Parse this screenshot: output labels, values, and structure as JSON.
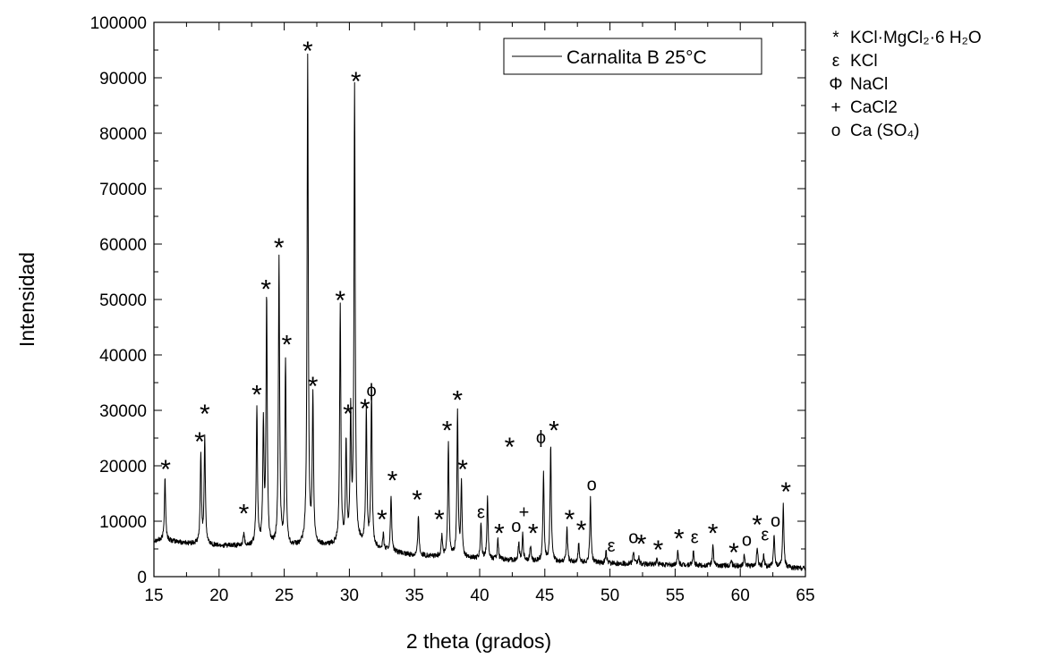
{
  "chart_data": {
    "type": "line",
    "xlabel": "2 theta (grados)",
    "ylabel": "Intensidad",
    "xlim": [
      15,
      65
    ],
    "ylim": [
      0,
      100000
    ],
    "x_ticks": [
      15,
      20,
      25,
      30,
      35,
      40,
      45,
      50,
      55,
      60,
      65
    ],
    "x_tick_labels": [
      "15",
      "20",
      "25",
      "30",
      "35",
      "40",
      "45",
      "50",
      "55",
      "60",
      "65"
    ],
    "y_ticks": [
      0,
      10000,
      20000,
      30000,
      40000,
      50000,
      60000,
      70000,
      80000,
      90000,
      100000
    ],
    "y_tick_labels": [
      "0",
      "10000",
      "20000",
      "30000",
      "40000",
      "50000",
      "60000",
      "70000",
      "80000",
      "90000",
      "100000"
    ],
    "grid": false,
    "legend": {
      "position": "top-right",
      "entries": [
        "Carnalita B 25°C"
      ]
    },
    "series": [
      {
        "name": "Carnalita B 25°C",
        "color": "#000000",
        "baseline": [
          [
            15,
            6500
          ],
          [
            16,
            6500
          ],
          [
            17,
            6200
          ],
          [
            18,
            5900
          ],
          [
            20,
            5600
          ],
          [
            22,
            5500
          ],
          [
            25,
            5300
          ],
          [
            28,
            5600
          ],
          [
            31,
            5800
          ],
          [
            33,
            4500
          ],
          [
            35,
            3800
          ],
          [
            38,
            3500
          ],
          [
            40,
            3200
          ],
          [
            45,
            2700
          ],
          [
            50,
            2400
          ],
          [
            55,
            2100
          ],
          [
            60,
            1900
          ],
          [
            65,
            1500
          ]
        ],
        "peaks": [
          [
            15.85,
            18000
          ],
          [
            18.6,
            22000
          ],
          [
            18.9,
            25000
          ],
          [
            21.9,
            8000
          ],
          [
            22.9,
            30500
          ],
          [
            23.4,
            27000
          ],
          [
            23.65,
            50000
          ],
          [
            24.6,
            57000
          ],
          [
            25.1,
            39000
          ],
          [
            26.8,
            93500
          ],
          [
            27.2,
            32000
          ],
          [
            29.3,
            48500
          ],
          [
            29.75,
            24000
          ],
          [
            30.1,
            29000
          ],
          [
            30.4,
            87500
          ],
          [
            31.3,
            30000
          ],
          [
            31.7,
            33000
          ],
          [
            32.6,
            7500
          ],
          [
            33.2,
            14500
          ],
          [
            35.3,
            11000
          ],
          [
            37.1,
            7500
          ],
          [
            37.6,
            24000
          ],
          [
            38.3,
            29500
          ],
          [
            38.6,
            16500
          ],
          [
            40.1,
            9500
          ],
          [
            40.6,
            14000
          ],
          [
            41.4,
            6500
          ],
          [
            43.0,
            6000
          ],
          [
            43.3,
            7500
          ],
          [
            43.9,
            5500
          ],
          [
            44.9,
            18500
          ],
          [
            45.45,
            23500
          ],
          [
            46.7,
            8500
          ],
          [
            47.6,
            6000
          ],
          [
            48.5,
            14000
          ],
          [
            49.7,
            4500
          ],
          [
            51.8,
            4500
          ],
          [
            52.2,
            3500
          ],
          [
            53.6,
            3200
          ],
          [
            55.2,
            4500
          ],
          [
            56.4,
            4500
          ],
          [
            57.9,
            5500
          ],
          [
            59.3,
            3000
          ],
          [
            60.3,
            4000
          ],
          [
            61.3,
            5500
          ],
          [
            61.8,
            4000
          ],
          [
            62.6,
            7500
          ],
          [
            63.3,
            13000
          ]
        ]
      }
    ],
    "annotations": [
      {
        "text": "*",
        "x": 15.9,
        "y": 20000
      },
      {
        "text": "*",
        "x": 18.5,
        "y": 25000
      },
      {
        "text": "*",
        "x": 18.9,
        "y": 30000
      },
      {
        "text": "*",
        "x": 21.9,
        "y": 12000
      },
      {
        "text": "*",
        "x": 22.9,
        "y": 33500
      },
      {
        "text": "*",
        "x": 23.6,
        "y": 52500
      },
      {
        "text": "*",
        "x": 24.6,
        "y": 60000
      },
      {
        "text": "*",
        "x": 25.2,
        "y": 42500
      },
      {
        "text": "*",
        "x": 26.8,
        "y": 95500
      },
      {
        "text": "*",
        "x": 27.2,
        "y": 35000
      },
      {
        "text": "*",
        "x": 29.3,
        "y": 50500
      },
      {
        "text": "*",
        "x": 29.9,
        "y": 30000
      },
      {
        "text": "*",
        "x": 30.5,
        "y": 90000
      },
      {
        "text": "*",
        "x": 31.2,
        "y": 31000
      },
      {
        "text": "ϕ",
        "x": 31.7,
        "y": 33500
      },
      {
        "text": "*",
        "x": 32.5,
        "y": 11000
      },
      {
        "text": "*",
        "x": 33.3,
        "y": 18000
      },
      {
        "text": "*",
        "x": 35.2,
        "y": 14500
      },
      {
        "text": "*",
        "x": 36.9,
        "y": 11000
      },
      {
        "text": "*",
        "x": 37.5,
        "y": 27000
      },
      {
        "text": "*",
        "x": 38.3,
        "y": 32500
      },
      {
        "text": "*",
        "x": 38.7,
        "y": 20000
      },
      {
        "text": "ε",
        "x": 40.1,
        "y": 11500
      },
      {
        "text": "*",
        "x": 41.5,
        "y": 8500
      },
      {
        "text": "o",
        "x": 42.8,
        "y": 9000
      },
      {
        "text": "+",
        "x": 43.4,
        "y": 11500
      },
      {
        "text": "*",
        "x": 44.1,
        "y": 8500
      },
      {
        "text": "*",
        "x": 42.3,
        "y": 24000
      },
      {
        "text": "ϕ",
        "x": 44.7,
        "y": 25000
      },
      {
        "text": "*",
        "x": 45.7,
        "y": 27000
      },
      {
        "text": "*",
        "x": 46.9,
        "y": 11000
      },
      {
        "text": "*",
        "x": 47.8,
        "y": 9000
      },
      {
        "text": "o",
        "x": 48.6,
        "y": 16500
      },
      {
        "text": "ε",
        "x": 50.1,
        "y": 5500
      },
      {
        "text": "o",
        "x": 51.8,
        "y": 7000
      },
      {
        "text": "*",
        "x": 52.4,
        "y": 6500
      },
      {
        "text": "*",
        "x": 53.7,
        "y": 5500
      },
      {
        "text": "*",
        "x": 55.3,
        "y": 7500
      },
      {
        "text": "ε",
        "x": 56.5,
        "y": 7000
      },
      {
        "text": "*",
        "x": 57.9,
        "y": 8500
      },
      {
        "text": "*",
        "x": 59.5,
        "y": 5000
      },
      {
        "text": "o",
        "x": 60.5,
        "y": 6500
      },
      {
        "text": "*",
        "x": 61.3,
        "y": 10000
      },
      {
        "text": "ε",
        "x": 61.9,
        "y": 7500
      },
      {
        "text": "o",
        "x": 62.7,
        "y": 10000
      },
      {
        "text": "*",
        "x": 63.5,
        "y": 16000
      }
    ]
  },
  "key": [
    {
      "symbol": "*",
      "label": "KCl·MgCl₂·6 H₂O"
    },
    {
      "symbol": "ε",
      "label": "KCl"
    },
    {
      "symbol": "Φ",
      "label": "NaCl"
    },
    {
      "symbol": "+",
      "label": "CaCl2"
    },
    {
      "symbol": "o",
      "label": "Ca (SO₄)"
    }
  ]
}
